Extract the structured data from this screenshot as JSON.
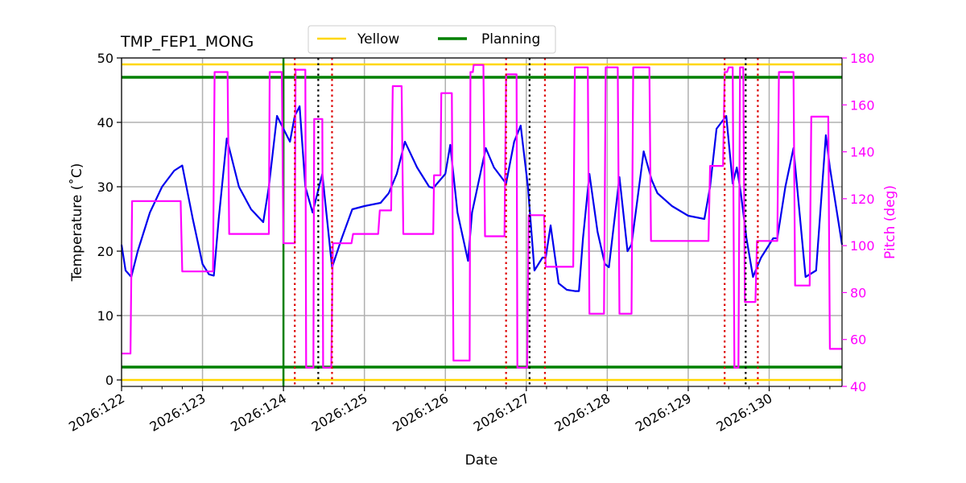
{
  "chart_data": {
    "type": "line",
    "title": "TMP_FEP1_MONG",
    "xlabel": "Date",
    "ylabel": "Temperature ($^\\circ$C)",
    "ylabel_right": "Pitch (deg)",
    "xlim": [
      122.0,
      130.9
    ],
    "ylim": [
      -1,
      50
    ],
    "ylim_right": [
      40,
      180
    ],
    "x_ticks": [
      122,
      123,
      124,
      125,
      126,
      127,
      128,
      129,
      130
    ],
    "x_tick_labels": [
      "2026:122",
      "2026:123",
      "2026:124",
      "2026:125",
      "2026:126",
      "2026:127",
      "2026:128",
      "2026:129",
      "2026:130"
    ],
    "y_ticks": [
      0,
      10,
      20,
      30,
      40,
      50
    ],
    "y_ticks_right": [
      40,
      60,
      80,
      100,
      120,
      140,
      160,
      180
    ],
    "grid": true,
    "legend": {
      "position": "top-center",
      "entries": [
        {
          "label": "Yellow",
          "color": "#ffd700"
        },
        {
          "label": "Planning",
          "color": "#008000"
        }
      ]
    },
    "colors": {
      "temperature": "#0000ee",
      "pitch": "#ff00ff",
      "yellow": "#ffd700",
      "planning": "#008000",
      "red_marker": "#dd0000",
      "black_marker": "#000000",
      "grid": "#b0b0b0"
    },
    "limits": {
      "yellow": [
        0,
        49
      ],
      "planning": [
        2,
        47
      ]
    },
    "now_line_x": 124.0,
    "red_dotted_x": [
      124.14,
      124.6,
      126.75,
      127.23,
      129.45,
      129.86
    ],
    "black_dotted_x": [
      124.43,
      127.04,
      129.71
    ],
    "series": [
      {
        "name": "Temperature",
        "axis": "left",
        "x": [
          122.0,
          122.05,
          122.12,
          122.2,
          122.35,
          122.5,
          122.65,
          122.75,
          122.88,
          123.0,
          123.08,
          123.14,
          123.2,
          123.3,
          123.45,
          123.6,
          123.75,
          123.82,
          123.92,
          124.0,
          124.08,
          124.14,
          124.2,
          124.27,
          124.36,
          124.48,
          124.6,
          124.72,
          124.85,
          125.0,
          125.2,
          125.3,
          125.4,
          125.5,
          125.65,
          125.8,
          125.85,
          126.0,
          126.06,
          126.15,
          126.28,
          126.33,
          126.5,
          126.6,
          126.75,
          126.85,
          126.93,
          127.02,
          127.1,
          127.2,
          127.24,
          127.3,
          127.4,
          127.5,
          127.6,
          127.65,
          127.7,
          127.78,
          127.88,
          127.97,
          128.02,
          128.15,
          128.25,
          128.3,
          128.45,
          128.55,
          128.62,
          128.8,
          129.0,
          129.2,
          129.27,
          129.35,
          129.47,
          129.55,
          129.6,
          129.65,
          129.72,
          129.8,
          129.9,
          129.95,
          130.05,
          130.1,
          130.2,
          130.3,
          130.45,
          130.58,
          130.7,
          130.75,
          130.9
        ],
        "y": [
          21,
          17,
          16,
          20,
          26,
          30,
          32.5,
          33.3,
          25,
          18,
          16.4,
          16.2,
          25,
          37.5,
          30,
          26.5,
          24.5,
          30,
          41,
          39,
          37,
          41,
          42.5,
          30,
          26,
          32,
          17.5,
          22,
          26.5,
          27,
          27.5,
          29,
          32,
          37,
          33,
          30,
          29.8,
          32,
          36.5,
          26,
          18.5,
          26,
          36,
          33,
          30.5,
          37,
          39.5,
          30,
          17,
          19,
          19,
          24,
          15,
          14,
          13.8,
          13.8,
          22,
          32,
          23,
          18,
          17.5,
          31.5,
          20,
          21,
          35.5,
          31,
          29,
          27,
          25.5,
          25,
          30,
          39,
          41,
          30.5,
          33,
          29,
          22,
          16,
          19,
          20,
          22,
          22,
          30,
          36,
          16,
          17,
          38,
          33,
          21
        ]
      },
      {
        "name": "Pitch",
        "axis": "right",
        "x": [
          122.0,
          122.11,
          122.13,
          122.73,
          122.75,
          123.13,
          123.15,
          123.31,
          123.33,
          123.82,
          123.83,
          123.98,
          124.0,
          124.14,
          124.15,
          124.27,
          124.28,
          124.37,
          124.38,
          124.48,
          124.49,
          124.59,
          124.61,
          124.84,
          124.86,
          125.17,
          125.19,
          125.33,
          125.35,
          125.46,
          125.48,
          125.85,
          125.86,
          125.94,
          125.95,
          126.08,
          126.1,
          126.3,
          126.31,
          126.34,
          126.35,
          126.47,
          126.49,
          126.73,
          126.75,
          126.88,
          126.89,
          127.01,
          127.03,
          127.22,
          127.24,
          127.58,
          127.6,
          127.76,
          127.78,
          127.96,
          127.98,
          128.13,
          128.15,
          128.3,
          128.32,
          128.52,
          128.54,
          129.25,
          129.27,
          129.43,
          129.45,
          129.48,
          129.5,
          129.55,
          129.57,
          129.62,
          129.64,
          129.68,
          129.7,
          129.83,
          129.85,
          130.1,
          130.12,
          130.3,
          130.32,
          130.5,
          130.52,
          130.73,
          130.75,
          130.9
        ],
        "y": [
          54,
          54,
          119,
          119,
          89,
          89,
          174,
          174,
          105,
          105,
          174,
          174,
          101,
          101,
          175,
          175,
          48,
          48,
          154,
          154,
          48,
          48,
          101,
          101,
          105,
          105,
          115,
          115,
          168,
          168,
          105,
          105,
          130,
          130,
          165,
          165,
          51,
          51,
          174,
          174,
          177,
          177,
          104,
          104,
          173,
          173,
          48,
          48,
          113,
          113,
          91,
          91,
          176,
          176,
          71,
          71,
          176,
          176,
          71,
          71,
          176,
          176,
          102,
          102,
          134,
          134,
          174,
          174,
          176,
          176,
          48,
          48,
          176,
          176,
          76,
          76,
          102,
          102,
          174,
          174,
          83,
          83,
          155,
          155,
          56,
          56
        ]
      }
    ]
  }
}
